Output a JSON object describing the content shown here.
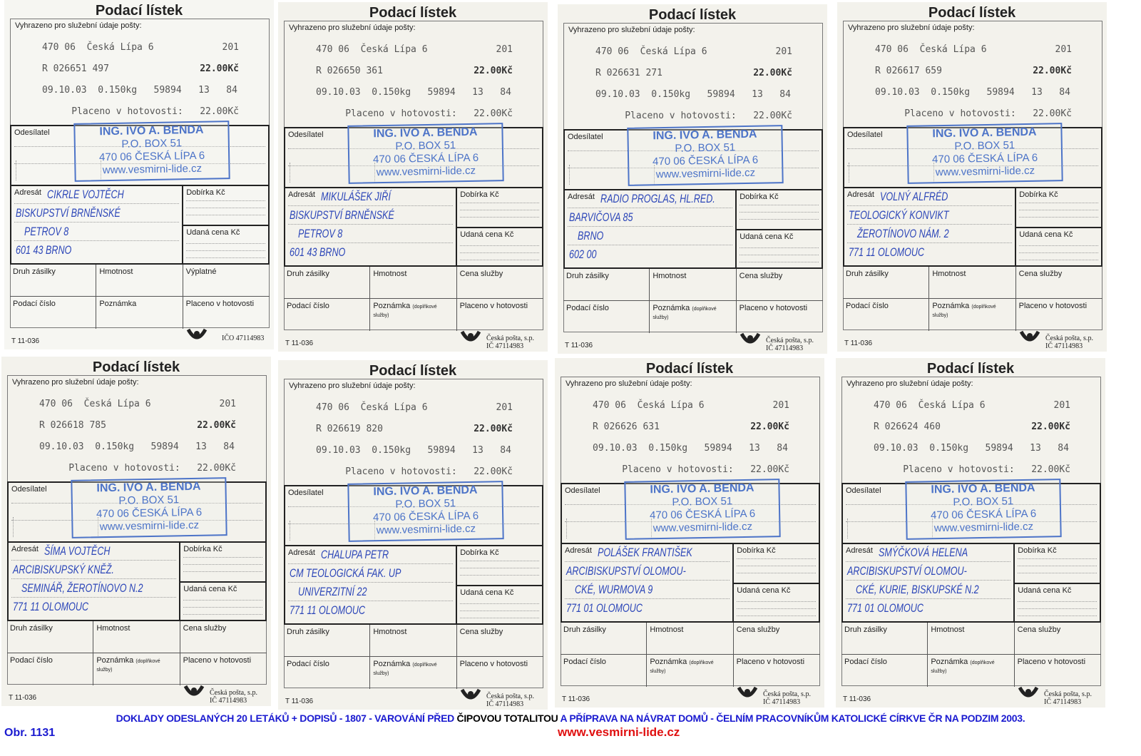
{
  "form": {
    "title": "Podací lístek",
    "service_label": "Vyhrazeno pro služební údaje pošty:",
    "post_office": "470 06  Česká Lípa 6",
    "counter": "201",
    "price": "22.00Kč",
    "date_line": "09.10.03  0.150kg   59894   13   84",
    "paid_line": "Placeno v hotovosti:   22.00Kč",
    "sender_label": "Odesílatel",
    "addressee_label": "Adresát",
    "cod_label": "Dobírka Kč",
    "value_label": "Udaná cena Kč",
    "type_label": "Druh zásilky",
    "weight_label": "Hmotnost",
    "fee_label": "Cena služby",
    "postage_label": "Výplatné",
    "number_label": "Podací číslo",
    "note_label": "Poznámka",
    "note_suffix": "(doplňkové služby)",
    "cash_label": "Placeno v hotovosti",
    "form_code": "T 11-036",
    "company": "Česká pošta, s.p.",
    "company_id": "IČ 47114983",
    "company_id_alt": "IČO 47114983",
    "logo_text": "ČESKÁ POŠTA"
  },
  "stamp": {
    "name": "ING. IVO A. BENDA",
    "box": "P.O. BOX  51",
    "city": "470 06 ČESKÁ LÍPA 6",
    "web": "www.vesmirni-lide.cz"
  },
  "slips": [
    {
      "receipt": "R 026651 497",
      "lines": [
        "CIKRLE VOJTĚCH",
        "BISKUPSTVÍ BRNĚNSKÉ",
        "PETROV 8",
        "601 43  BRNO"
      ]
    },
    {
      "receipt": "R 026650 361",
      "lines": [
        "MIKULÁŠEK JIŘÍ",
        "BISKUPSTVÍ BRNĚNSKÉ",
        "PETROV 8",
        "601 43  BRNO"
      ]
    },
    {
      "receipt": "R 026631 271",
      "lines": [
        "RADIO PROGLAS, HL.RED.",
        "BARVIČOVA 85",
        "BRNO",
        "602 00"
      ]
    },
    {
      "receipt": "R 026617 659",
      "lines": [
        "VOLNÝ ALFRÉD",
        "TEOLOGICKÝ KONVIKT",
        "ŽEROTÍNOVO NÁM. 2",
        "771 11  OLOMOUC"
      ]
    },
    {
      "receipt": "R 026618 785",
      "lines": [
        "ŠÍMA VOJTĚCH",
        "ARCIBISKUPSKÝ KNĚŽ.",
        "SEMINÁŘ, ŽEROTÍNOVO N.2",
        "771 11  OLOMOUC"
      ]
    },
    {
      "receipt": "R 026619 820",
      "lines": [
        "CHALUPA PETR",
        "CM TEOLOGICKÁ FAK. UP",
        "UNIVERZITNÍ 22",
        "771 11  OLOMOUC"
      ]
    },
    {
      "receipt": "R 026626 631",
      "lines": [
        "POLÁŠEK FRANTIŠEK",
        "ARCIBISKUPSTVÍ OLOMOU-",
        "CKÉ, WURMOVA 9",
        "771 01  OLOMOUC"
      ]
    },
    {
      "receipt": "R 026624 460",
      "lines": [
        "SMÝČKOVÁ HELENA",
        "ARCIBISKUPSTVÍ OLOMOU-",
        "CKÉ, KURIE, BISKUPSKÉ N.2",
        "771 01  OLOMOUC"
      ]
    }
  ],
  "caption": {
    "part1": "DOKLADY ODESLANÝCH 20 LETÁKŮ + DOPISŮ - 1807 - VAROVÁNÍ PŘED ",
    "part2": "ČIPOVOU  TOTALITOU",
    "part3": " A PŘÍPRAVA NA  NÁVRAT DOMŮ - ČELNÍM PRACOVNÍKŮM KATOLICKÉ CÍRKVE ČR NA PODZIM 2003.",
    "figure": "Obr. 1131",
    "url": "www.vesmirni-lide.cz"
  },
  "colors": {
    "stamp": "#4d74c8",
    "handwriting": "#2c46b8",
    "caption": "#1a1ad0",
    "url": "#e01010"
  }
}
